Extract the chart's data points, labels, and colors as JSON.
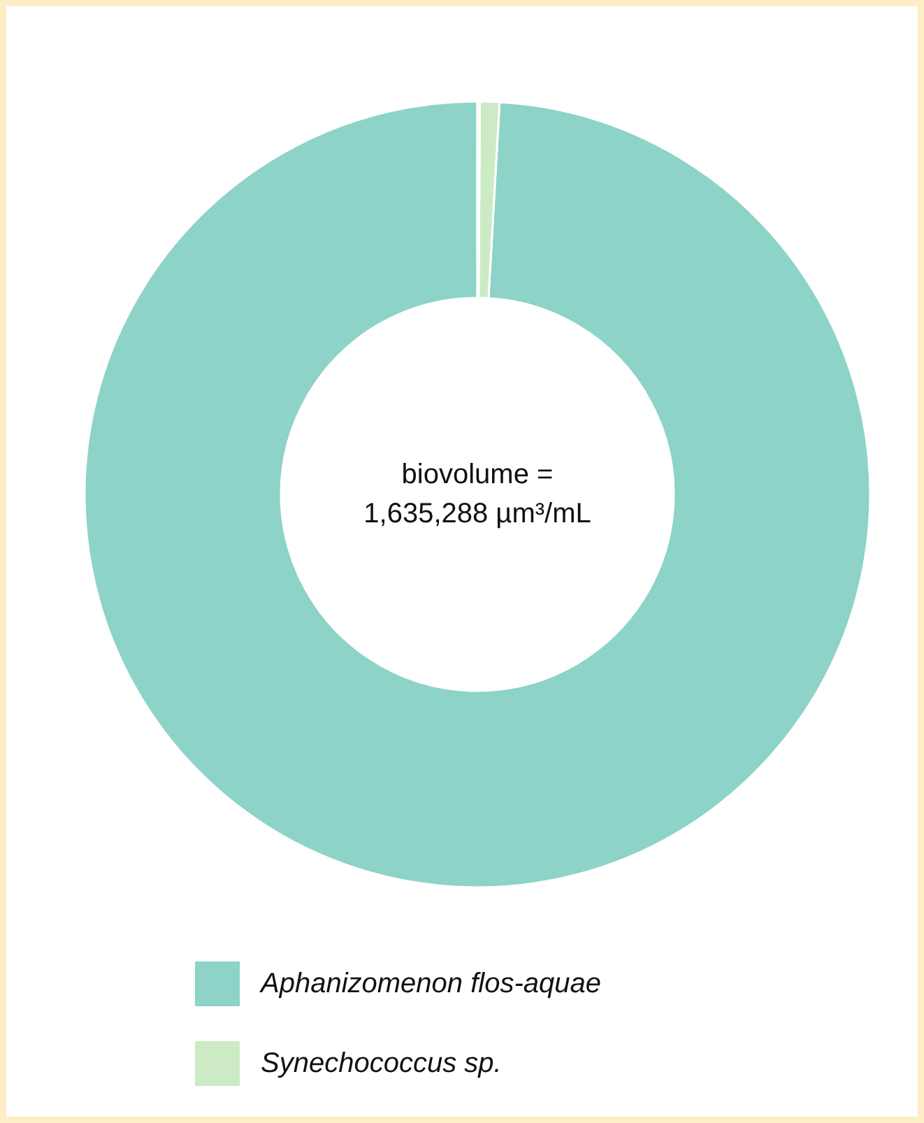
{
  "chart_data": {
    "type": "donut",
    "categories": [
      "Aphanizomenon flos-aquae",
      "Synechococcus sp.",
      null
    ],
    "values": [
      99.1,
      0.8,
      0.1
    ],
    "colors": [
      "#8dd3c7",
      "#ccebc5",
      "#fde8b0"
    ],
    "legend": "bottom",
    "annotations": [
      "biovolume =\n1,635,288 µm³/mL"
    ]
  }
}
